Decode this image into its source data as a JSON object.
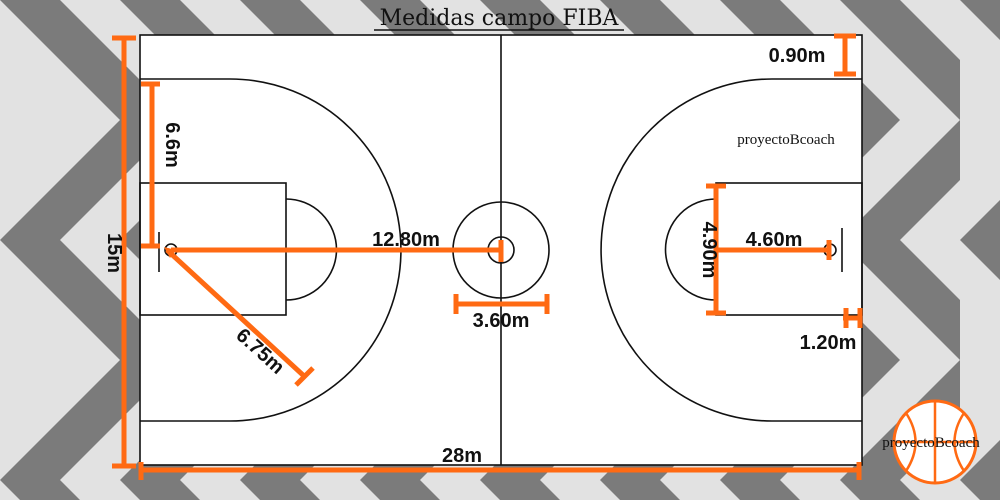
{
  "title": "Medidas campo FIBA",
  "watermark": "proyectoBcoach",
  "logo_text": "proyectoBcoach",
  "colors": {
    "accent": "#ff6a13",
    "court_floor": "#ffffff",
    "court_lines": "#111111",
    "background_light": "#e6e6e6",
    "background_dark": "#7a7a7a"
  },
  "measurements": {
    "court_width": "15m",
    "court_length": "28m",
    "corner_three_distance": "0.90m",
    "three_point_straight": "6.6m",
    "three_point_radius": "6.75m",
    "baseline_to_center": "12.80m",
    "center_circle": "3.60m",
    "key_width": "4.90m",
    "free_throw_distance": "4.60m",
    "backboard_offset": "1.20m"
  }
}
